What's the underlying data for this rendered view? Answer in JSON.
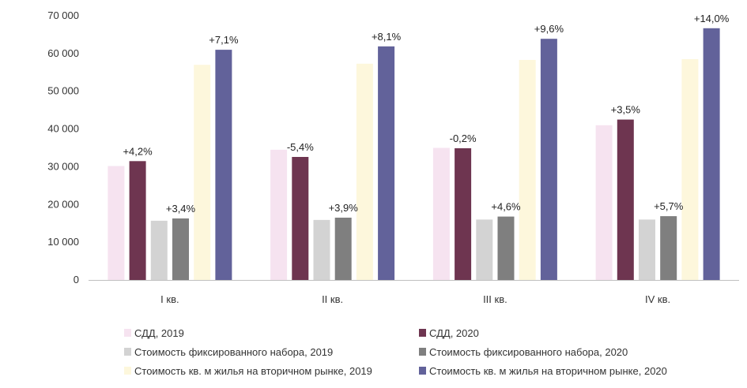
{
  "chart_data": {
    "type": "bar",
    "categories": [
      "I кв.",
      "II кв.",
      "III кв.",
      "IV кв."
    ],
    "ylim": [
      0,
      70000
    ],
    "yticks": [
      {
        "value": 0,
        "label": "0"
      },
      {
        "value": 10000,
        "label": "10 000"
      },
      {
        "value": 20000,
        "label": "20 000"
      },
      {
        "value": 30000,
        "label": "30 000"
      },
      {
        "value": 40000,
        "label": "40 000"
      },
      {
        "value": 50000,
        "label": "50 000"
      },
      {
        "value": 60000,
        "label": "60 000"
      },
      {
        "value": 70000,
        "label": "70 000"
      }
    ],
    "grid": false,
    "legend_position": "bottom",
    "series": [
      {
        "name": "СДД, 2019",
        "color": "#f6e3f0",
        "values": [
          30200,
          34500,
          35000,
          41000
        ]
      },
      {
        "name": "СДД, 2020",
        "color": "#6e3550",
        "values": [
          31500,
          32600,
          34900,
          42500
        ],
        "labels": [
          "+4,2%",
          "-5,4%",
          "-0,2%",
          "+3,5%"
        ]
      },
      {
        "name": "Стоимость фиксированного набора, 2019",
        "color": "#d3d3d3",
        "values": [
          15700,
          15900,
          16000,
          16000
        ]
      },
      {
        "name": "Стоимость фиксированного набора, 2020",
        "color": "#7f7f7f",
        "values": [
          16300,
          16500,
          16800,
          16900
        ],
        "labels": [
          "+3,4%",
          "+3,9%",
          "+4,6%",
          "+5,7%"
        ]
      },
      {
        "name": "Стоимость кв. м жилья на вторичном рынке, 2019",
        "color": "#fdf7dc",
        "values": [
          57000,
          57300,
          58300,
          58500
        ]
      },
      {
        "name": "Стоимость кв. м жилья на вторичном рынке, 2020",
        "color": "#62629a",
        "values": [
          61000,
          61900,
          63900,
          66700
        ],
        "labels": [
          "+7,1%",
          "+8,1%",
          "+9,6%",
          "+14,0%"
        ]
      }
    ]
  }
}
